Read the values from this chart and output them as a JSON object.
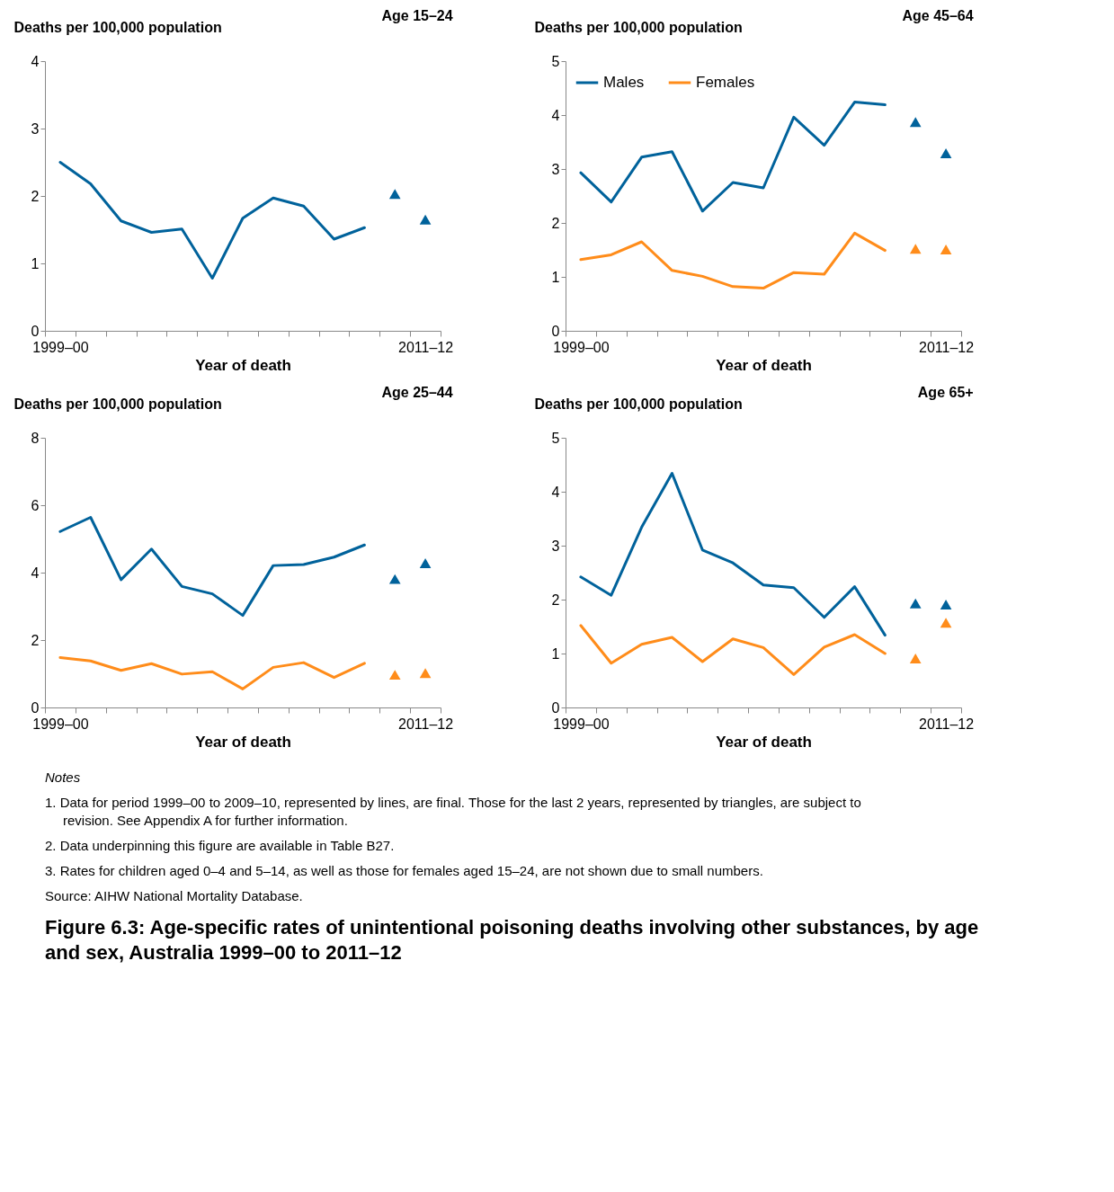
{
  "chart_data": [
    {
      "type": "line",
      "title": "Age 15–24",
      "ylabel": "Deaths per 100,000 population",
      "xlabel": "Year of death",
      "categories": [
        "1999–00",
        null,
        null,
        null,
        null,
        null,
        null,
        null,
        null,
        null,
        null,
        null,
        "2011–12"
      ],
      "ylim": [
        0,
        4
      ],
      "yticks": [
        0,
        1,
        2,
        3,
        4
      ],
      "grid": false,
      "legend": false,
      "series": [
        {
          "color": "#00629b",
          "values": [
            2.5,
            2.18,
            1.63,
            1.46,
            1.51,
            0.78,
            1.67,
            1.97,
            1.85,
            1.36,
            1.53,
            null,
            null
          ]
        },
        {
          "type": "scatter",
          "marker": "triangle",
          "color": "#00629b",
          "values": [
            null,
            null,
            null,
            null,
            null,
            null,
            null,
            null,
            null,
            null,
            null,
            2.03,
            1.65
          ]
        }
      ]
    },
    {
      "type": "line",
      "title": "Age 45–64",
      "ylabel": "Deaths per 100,000 population",
      "xlabel": "Year of death",
      "categories": [
        "1999–00",
        null,
        null,
        null,
        null,
        null,
        null,
        null,
        null,
        null,
        null,
        null,
        "2011–12"
      ],
      "ylim": [
        0,
        5
      ],
      "yticks": [
        0,
        1,
        2,
        3,
        4,
        5
      ],
      "grid": false,
      "legend": "top left",
      "series": [
        {
          "name": "Males",
          "color": "#00629b",
          "values": [
            2.93,
            2.39,
            3.22,
            3.32,
            2.22,
            2.75,
            2.65,
            3.96,
            3.44,
            4.24,
            4.19,
            null,
            null
          ]
        },
        {
          "name": "Females",
          "color": "#ff8c1a",
          "values": [
            1.32,
            1.41,
            1.65,
            1.12,
            1.01,
            0.82,
            0.79,
            1.08,
            1.05,
            1.81,
            1.49,
            null,
            null
          ]
        },
        {
          "type": "scatter",
          "marker": "triangle",
          "color": "#00629b",
          "values": [
            null,
            null,
            null,
            null,
            null,
            null,
            null,
            null,
            null,
            null,
            null,
            3.87,
            3.29
          ]
        },
        {
          "type": "scatter",
          "marker": "triangle",
          "color": "#ff8c1a",
          "values": [
            null,
            null,
            null,
            null,
            null,
            null,
            null,
            null,
            null,
            null,
            null,
            1.52,
            1.51
          ]
        }
      ]
    },
    {
      "type": "line",
      "title": "Age 25–44",
      "ylabel": "Deaths per 100,000 population",
      "xlabel": "Year of death",
      "categories": [
        "1999–00",
        null,
        null,
        null,
        null,
        null,
        null,
        null,
        null,
        null,
        null,
        null,
        "2011–12"
      ],
      "ylim": [
        0,
        8
      ],
      "yticks": [
        0,
        2,
        4,
        6,
        8
      ],
      "grid": false,
      "legend": false,
      "series": [
        {
          "color": "#00629b",
          "values": [
            5.22,
            5.64,
            3.79,
            4.7,
            3.59,
            3.37,
            2.73,
            4.21,
            4.24,
            4.46,
            4.82,
            null,
            null
          ]
        },
        {
          "color": "#ff8c1a",
          "values": [
            1.48,
            1.38,
            1.1,
            1.3,
            0.99,
            1.06,
            0.55,
            1.19,
            1.33,
            0.89,
            1.31,
            null,
            null
          ]
        },
        {
          "type": "scatter",
          "marker": "triangle",
          "color": "#00629b",
          "values": [
            null,
            null,
            null,
            null,
            null,
            null,
            null,
            null,
            null,
            null,
            null,
            3.81,
            4.28
          ]
        },
        {
          "type": "scatter",
          "marker": "triangle",
          "color": "#ff8c1a",
          "values": [
            null,
            null,
            null,
            null,
            null,
            null,
            null,
            null,
            null,
            null,
            null,
            0.97,
            1.02
          ]
        }
      ]
    },
    {
      "type": "line",
      "title": "Age 65+",
      "ylabel": "Deaths per 100,000 population",
      "xlabel": "Year of death",
      "categories": [
        "1999–00",
        null,
        null,
        null,
        null,
        null,
        null,
        null,
        null,
        null,
        null,
        null,
        "2011–12"
      ],
      "ylim": [
        0,
        5
      ],
      "yticks": [
        0,
        1,
        2,
        3,
        4,
        5
      ],
      "grid": false,
      "legend": false,
      "series": [
        {
          "color": "#00629b",
          "values": [
            2.42,
            2.08,
            3.34,
            4.34,
            2.92,
            2.68,
            2.27,
            2.22,
            1.67,
            2.24,
            1.34,
            null,
            null
          ]
        },
        {
          "color": "#ff8c1a",
          "values": [
            1.52,
            0.82,
            1.17,
            1.3,
            0.85,
            1.27,
            1.11,
            0.61,
            1.12,
            1.35,
            1.0,
            null,
            null
          ]
        },
        {
          "type": "scatter",
          "marker": "triangle",
          "color": "#00629b",
          "values": [
            null,
            null,
            null,
            null,
            null,
            null,
            null,
            null,
            null,
            null,
            null,
            1.93,
            1.91
          ]
        },
        {
          "type": "scatter",
          "marker": "triangle",
          "color": "#ff8c1a",
          "values": [
            null,
            null,
            null,
            null,
            null,
            null,
            null,
            null,
            null,
            null,
            null,
            0.91,
            1.57
          ]
        }
      ]
    },
    {
      "type": "other",
      "title": "Figure 6.3: Age-specific rates of unintentional poisoning deaths involving other substances, by age and sex, Australia 1999–00 to 2011–12",
      "annotations": [
        "Notes",
        "1. Data for period 1999–00 to 2009–10, represented by lines, are final. Those for the last 2 years, represented by triangles, are subject to revision. See Appendix A for further information.",
        "2. Data underpinning this figure are available in Table B27.",
        "3. Rates for children aged 0–4 and 5–14, as well as those for females aged 15–24, are not shown due to small numbers.",
        "Source: AIHW National Mortality Database."
      ]
    }
  ]
}
